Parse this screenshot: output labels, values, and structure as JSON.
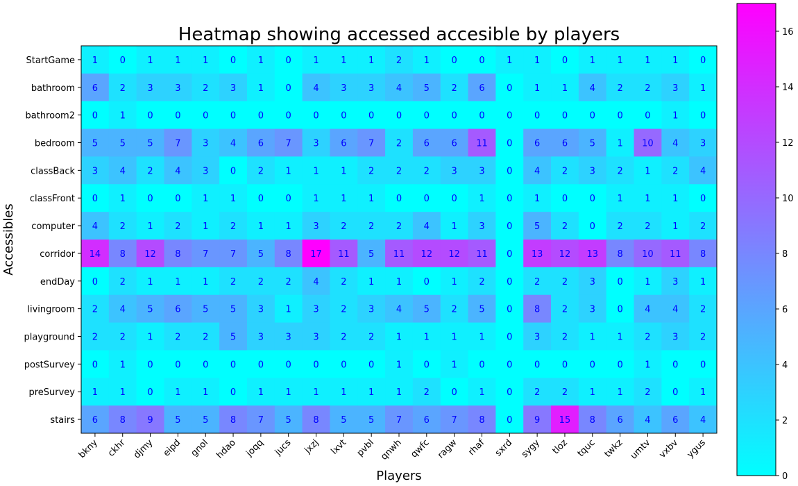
{
  "chart_data": {
    "type": "heatmap",
    "title": "Heatmap showing accessed accesible by players",
    "xlabel": "Players",
    "ylabel": "Accessibles",
    "colormap": "cool",
    "vmin": 0,
    "vmax": 17,
    "colorbar_ticks": [
      0,
      2,
      4,
      6,
      8,
      10,
      12,
      14,
      16
    ],
    "x_categories": [
      "bkny",
      "ckhr",
      "djmy",
      "eipd",
      "gnol",
      "hdao",
      "joqq",
      "jucs",
      "jxzj",
      "lxvt",
      "pvbl",
      "qnwh",
      "qwfc",
      "ragw",
      "rhaf",
      "sxrd",
      "sygy",
      "tloz",
      "tquc",
      "twkz",
      "umtv",
      "vxbv",
      "ygus"
    ],
    "y_categories": [
      "StartGame",
      "bathroom",
      "bathroom2",
      "bedroom",
      "classBack",
      "classFront",
      "computer",
      "corridor",
      "endDay",
      "livingroom",
      "playground",
      "postSurvey",
      "preSurvey",
      "stairs"
    ],
    "values": [
      [
        1,
        0,
        1,
        1,
        1,
        0,
        1,
        0,
        1,
        1,
        1,
        2,
        1,
        0,
        0,
        1,
        1,
        0,
        1,
        1,
        1,
        1,
        0
      ],
      [
        6,
        2,
        3,
        3,
        2,
        3,
        1,
        0,
        4,
        3,
        3,
        4,
        5,
        2,
        6,
        0,
        1,
        1,
        4,
        2,
        2,
        3,
        1
      ],
      [
        0,
        1,
        0,
        0,
        0,
        0,
        0,
        0,
        0,
        0,
        0,
        0,
        0,
        0,
        0,
        0,
        0,
        0,
        0,
        0,
        0,
        1,
        0
      ],
      [
        5,
        5,
        5,
        7,
        3,
        4,
        6,
        7,
        3,
        6,
        7,
        2,
        6,
        6,
        11,
        0,
        6,
        6,
        5,
        1,
        10,
        4,
        3
      ],
      [
        3,
        4,
        2,
        4,
        3,
        0,
        2,
        1,
        1,
        1,
        2,
        2,
        2,
        3,
        3,
        0,
        4,
        2,
        3,
        2,
        1,
        2,
        4
      ],
      [
        0,
        1,
        0,
        0,
        1,
        1,
        0,
        0,
        1,
        1,
        1,
        0,
        0,
        0,
        1,
        0,
        1,
        0,
        0,
        1,
        1,
        1,
        0
      ],
      [
        4,
        2,
        1,
        2,
        1,
        2,
        1,
        1,
        3,
        2,
        2,
        2,
        4,
        1,
        3,
        0,
        5,
        2,
        0,
        2,
        2,
        1,
        2
      ],
      [
        14,
        8,
        12,
        8,
        7,
        7,
        5,
        8,
        17,
        11,
        5,
        11,
        12,
        12,
        11,
        0,
        13,
        12,
        13,
        8,
        10,
        11,
        8
      ],
      [
        0,
        2,
        1,
        1,
        1,
        2,
        2,
        2,
        4,
        2,
        1,
        1,
        0,
        1,
        2,
        0,
        2,
        2,
        3,
        0,
        1,
        3,
        1
      ],
      [
        2,
        4,
        5,
        6,
        5,
        5,
        3,
        1,
        3,
        2,
        3,
        4,
        5,
        2,
        5,
        0,
        8,
        2,
        3,
        0,
        4,
        4,
        2
      ],
      [
        2,
        2,
        1,
        2,
        2,
        5,
        3,
        3,
        3,
        2,
        2,
        1,
        1,
        1,
        1,
        0,
        3,
        2,
        1,
        1,
        2,
        3,
        2
      ],
      [
        0,
        1,
        0,
        0,
        0,
        0,
        0,
        0,
        0,
        0,
        0,
        1,
        0,
        1,
        0,
        0,
        0,
        0,
        0,
        0,
        1,
        0,
        0
      ],
      [
        1,
        1,
        0,
        1,
        1,
        0,
        1,
        1,
        1,
        1,
        1,
        1,
        2,
        0,
        1,
        0,
        2,
        2,
        1,
        1,
        2,
        0,
        1
      ],
      [
        6,
        8,
        9,
        5,
        5,
        8,
        7,
        5,
        8,
        5,
        5,
        7,
        6,
        7,
        8,
        0,
        9,
        15,
        8,
        6,
        4,
        6,
        4
      ]
    ]
  }
}
